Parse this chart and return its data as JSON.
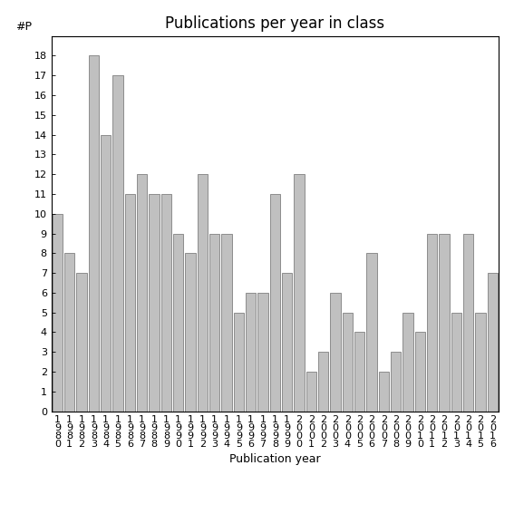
{
  "title": "Publications per year in class",
  "xlabel": "Publication year",
  "ylabel": "#P",
  "categories": [
    "1\n9\n8\n0",
    "1\n9\n8\n1",
    "1\n9\n8\n2",
    "1\n9\n8\n3",
    "1\n9\n8\n4",
    "1\n9\n8\n5",
    "1\n9\n8\n6",
    "1\n9\n8\n7",
    "1\n9\n8\n8",
    "1\n9\n8\n9",
    "1\n9\n9\n0",
    "1\n9\n9\n1",
    "1\n9\n9\n2",
    "1\n9\n9\n3",
    "1\n9\n9\n4",
    "1\n9\n9\n5",
    "1\n9\n9\n6",
    "1\n9\n9\n7",
    "1\n9\n9\n8",
    "1\n9\n9\n9",
    "2\n0\n0\n0",
    "2\n0\n0\n1",
    "2\n0\n0\n2",
    "2\n0\n0\n3",
    "2\n0\n0\n4",
    "2\n0\n0\n5",
    "2\n0\n0\n6",
    "2\n0\n0\n7",
    "2\n0\n0\n8",
    "2\n0\n0\n9",
    "2\n0\n1\n0",
    "2\n0\n1\n1",
    "2\n0\n1\n2",
    "2\n0\n1\n3",
    "2\n0\n1\n4",
    "2\n0\n1\n5",
    "2\n0\n1\n6"
  ],
  "values": [
    10,
    8,
    7,
    18,
    14,
    17,
    11,
    12,
    11,
    11,
    9,
    8,
    12,
    9,
    9,
    5,
    6,
    6,
    11,
    7,
    12,
    2,
    3,
    6,
    5,
    4,
    8,
    2,
    3,
    5,
    4,
    9,
    9,
    5,
    9,
    5,
    7
  ],
  "bar_color": "#c0c0c0",
  "bar_edge_color": "#808080",
  "ylim": [
    0,
    19
  ],
  "yticks": [
    0,
    1,
    2,
    3,
    4,
    5,
    6,
    7,
    8,
    9,
    10,
    11,
    12,
    13,
    14,
    15,
    16,
    17,
    18
  ],
  "background_color": "#ffffff",
  "title_fontsize": 12,
  "axis_label_fontsize": 9,
  "tick_fontsize": 8
}
